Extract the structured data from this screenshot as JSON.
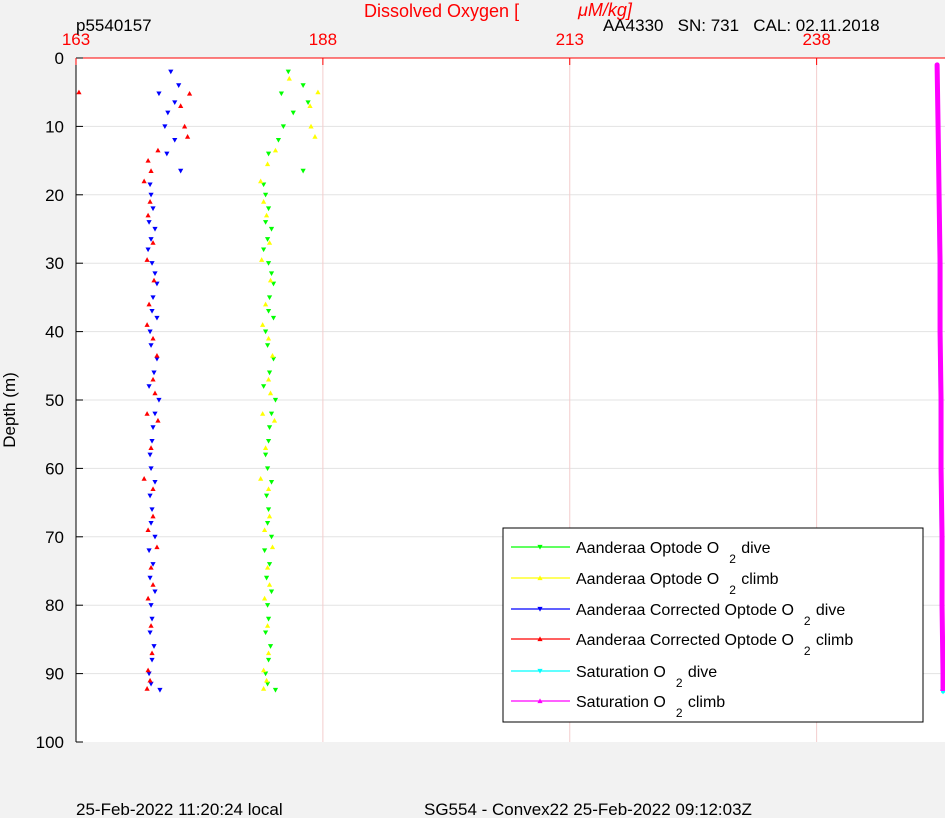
{
  "header": {
    "profile_id": "p5540157",
    "x_axis_title_prefix": "Dissolved Oxygen [",
    "x_axis_title_unit": "μM/kg]",
    "sensor_info": "AA4330   SN: 731   CAL: 02.11.2018"
  },
  "footer": {
    "local_time": "25-Feb-2022 11:20:24 local",
    "mission": "SG554 - Convex22 25-Feb-2022 09:12:03Z"
  },
  "chart_data": {
    "type": "scatter",
    "xlabel": "Dissolved Oxygen [μM/kg]",
    "ylabel": "Depth (m)",
    "xlim": [
      163,
      251
    ],
    "ylim": [
      0,
      100
    ],
    "y_reversed": true,
    "x_ticks": [
      163,
      188,
      213,
      238
    ],
    "y_ticks": [
      0,
      10,
      20,
      30,
      40,
      50,
      60,
      70,
      80,
      90,
      100
    ],
    "grid": true,
    "legend_position": "lower-right",
    "series": [
      {
        "name": "Aanderaa Optode O2 dive",
        "legend_main": "Aanderaa Optode O",
        "legend_sub": "2",
        "legend_tail": "dive",
        "color": "#00ff00",
        "marker": "triangle-down",
        "points": [
          [
            184.5,
            2
          ],
          [
            186,
            4
          ],
          [
            183.8,
            5.2
          ],
          [
            186.5,
            6.5
          ],
          [
            185,
            8
          ],
          [
            184,
            10
          ],
          [
            183.5,
            12
          ],
          [
            182.5,
            14
          ],
          [
            186,
            16.5
          ],
          [
            182,
            18.5
          ],
          [
            182.2,
            20
          ],
          [
            182.5,
            22
          ],
          [
            182.2,
            24
          ],
          [
            182.8,
            25
          ],
          [
            182.4,
            26.5
          ],
          [
            182,
            28
          ],
          [
            182.5,
            30
          ],
          [
            182.8,
            31.5
          ],
          [
            183,
            33
          ],
          [
            182.6,
            35
          ],
          [
            182.5,
            37
          ],
          [
            183,
            38
          ],
          [
            182.2,
            40
          ],
          [
            182.4,
            42
          ],
          [
            183,
            44
          ],
          [
            182.6,
            46
          ],
          [
            182,
            48
          ],
          [
            183.2,
            50
          ],
          [
            182.8,
            52
          ],
          [
            182.6,
            54
          ],
          [
            182.5,
            56
          ],
          [
            182.2,
            58
          ],
          [
            182.4,
            60
          ],
          [
            182.8,
            62
          ],
          [
            182.3,
            64
          ],
          [
            182.5,
            66
          ],
          [
            182.4,
            68
          ],
          [
            182.8,
            70
          ],
          [
            182.1,
            72
          ],
          [
            182.6,
            74
          ],
          [
            182.3,
            76
          ],
          [
            182.8,
            78
          ],
          [
            182.4,
            80
          ],
          [
            182.5,
            82
          ],
          [
            182.2,
            84
          ],
          [
            182.7,
            86
          ],
          [
            182.5,
            88
          ],
          [
            182.2,
            90
          ],
          [
            182.4,
            91.5
          ],
          [
            183.2,
            92.4
          ]
        ]
      },
      {
        "name": "Aanderaa Optode O2 climb",
        "legend_main": "Aanderaa Optode O",
        "legend_sub": "2",
        "legend_tail": "climb",
        "color": "#ffff00",
        "marker": "triangle-up",
        "points": [
          [
            184.6,
            3
          ],
          [
            187.5,
            5
          ],
          [
            186.7,
            7
          ],
          [
            186.8,
            10
          ],
          [
            187.2,
            11.5
          ],
          [
            183.2,
            13.5
          ],
          [
            182.4,
            15.5
          ],
          [
            181.7,
            18
          ],
          [
            182,
            21
          ],
          [
            182.3,
            23
          ],
          [
            182.6,
            27
          ],
          [
            181.8,
            29.5
          ],
          [
            182.7,
            32.5
          ],
          [
            182.2,
            36
          ],
          [
            181.9,
            39
          ],
          [
            182.5,
            41
          ],
          [
            182.9,
            43.5
          ],
          [
            182.5,
            47
          ],
          [
            182.7,
            49
          ],
          [
            181.9,
            52
          ],
          [
            183.1,
            53
          ],
          [
            182.2,
            57
          ],
          [
            181.7,
            61.5
          ],
          [
            182.5,
            63
          ],
          [
            182.6,
            67
          ],
          [
            182.1,
            69
          ],
          [
            182.9,
            71.5
          ],
          [
            182.4,
            74.5
          ],
          [
            182.6,
            77
          ],
          [
            182.1,
            79
          ],
          [
            182.4,
            83
          ],
          [
            182.5,
            87
          ],
          [
            182,
            89.5
          ],
          [
            182.3,
            91
          ],
          [
            182,
            92.2
          ]
        ]
      },
      {
        "name": "Aanderaa Corrected Optode O2 dive",
        "legend_main": "Aanderaa Corrected Optode O",
        "legend_sub": "2",
        "legend_tail": "dive",
        "color": "#0000ff",
        "marker": "triangle-down",
        "points": [
          [
            172.6,
            2
          ],
          [
            173.4,
            4
          ],
          [
            171.4,
            5.2
          ],
          [
            173,
            6.5
          ],
          [
            172.3,
            8
          ],
          [
            172,
            10
          ],
          [
            173,
            12
          ],
          [
            172.2,
            14
          ],
          [
            173.6,
            16.5
          ],
          [
            170.5,
            18.5
          ],
          [
            170.6,
            20
          ],
          [
            170.8,
            22
          ],
          [
            170.4,
            24
          ],
          [
            171,
            25
          ],
          [
            170.6,
            26.5
          ],
          [
            170.3,
            28
          ],
          [
            170.7,
            30
          ],
          [
            171,
            31.5
          ],
          [
            171.2,
            33
          ],
          [
            170.8,
            35
          ],
          [
            170.7,
            37
          ],
          [
            171.2,
            38
          ],
          [
            170.5,
            40
          ],
          [
            170.6,
            42
          ],
          [
            171.2,
            44
          ],
          [
            170.9,
            46
          ],
          [
            170.4,
            48
          ],
          [
            171.4,
            50
          ],
          [
            171,
            52
          ],
          [
            170.8,
            54
          ],
          [
            170.7,
            56
          ],
          [
            170.5,
            58
          ],
          [
            170.6,
            60
          ],
          [
            171,
            62
          ],
          [
            170.5,
            64
          ],
          [
            170.7,
            66
          ],
          [
            170.6,
            68
          ],
          [
            171,
            70
          ],
          [
            170.4,
            72
          ],
          [
            170.8,
            74
          ],
          [
            170.5,
            76
          ],
          [
            171,
            78
          ],
          [
            170.6,
            80
          ],
          [
            170.7,
            82
          ],
          [
            170.5,
            84
          ],
          [
            170.9,
            86
          ],
          [
            170.7,
            88
          ],
          [
            170.4,
            90
          ],
          [
            170.6,
            91.5
          ],
          [
            171.5,
            92.4
          ]
        ]
      },
      {
        "name": "Aanderaa Corrected Optode O2 climb",
        "legend_main": "Aanderaa Corrected Optode O",
        "legend_sub": "2",
        "legend_tail": "climb",
        "color": "#ff0000",
        "marker": "triangle-up",
        "points": [
          [
            163.3,
            5
          ],
          [
            174.5,
            5.2
          ],
          [
            173.6,
            7
          ],
          [
            174,
            10
          ],
          [
            174.3,
            11.5
          ],
          [
            171.3,
            13.5
          ],
          [
            170.3,
            15
          ],
          [
            170.6,
            16.5
          ],
          [
            169.9,
            18
          ],
          [
            170.5,
            21
          ],
          [
            170.3,
            23
          ],
          [
            170.8,
            27
          ],
          [
            170.2,
            29.5
          ],
          [
            170.9,
            32.5
          ],
          [
            170.4,
            36
          ],
          [
            170.2,
            39
          ],
          [
            170.8,
            41
          ],
          [
            171.2,
            43.5
          ],
          [
            170.8,
            47
          ],
          [
            171,
            49
          ],
          [
            170.2,
            52
          ],
          [
            171.3,
            53
          ],
          [
            170.6,
            57
          ],
          [
            169.9,
            61.5
          ],
          [
            170.8,
            63
          ],
          [
            170.8,
            67
          ],
          [
            170.3,
            69
          ],
          [
            171.2,
            71.5
          ],
          [
            170.6,
            74.5
          ],
          [
            170.8,
            77
          ],
          [
            170.3,
            79
          ],
          [
            170.6,
            83
          ],
          [
            170.7,
            87
          ],
          [
            170.3,
            89.5
          ],
          [
            170.5,
            91
          ],
          [
            170.2,
            92.2
          ]
        ]
      },
      {
        "name": "Saturation O2 dive",
        "legend_main": "Saturation O",
        "legend_sub": "2",
        "legend_tail": "dive",
        "color": "#00ffff",
        "marker": "triangle-down",
        "points": [
          [
            250.2,
            1
          ],
          [
            250.4,
            20
          ],
          [
            250.5,
            40
          ],
          [
            250.6,
            60
          ],
          [
            250.7,
            80
          ],
          [
            250.8,
            92.6
          ]
        ]
      },
      {
        "name": "Saturation O2 climb",
        "legend_main": "Saturation O",
        "legend_sub": "2",
        "legend_tail": "climb",
        "color": "#ff00ff",
        "marker": "triangle-up",
        "points": [
          [
            250.2,
            1
          ],
          [
            250.3,
            10
          ],
          [
            250.4,
            20
          ],
          [
            250.5,
            30
          ],
          [
            250.5,
            40
          ],
          [
            250.6,
            50
          ],
          [
            250.6,
            60
          ],
          [
            250.7,
            70
          ],
          [
            250.7,
            80
          ],
          [
            250.8,
            90
          ],
          [
            250.8,
            92.2
          ]
        ]
      }
    ]
  }
}
